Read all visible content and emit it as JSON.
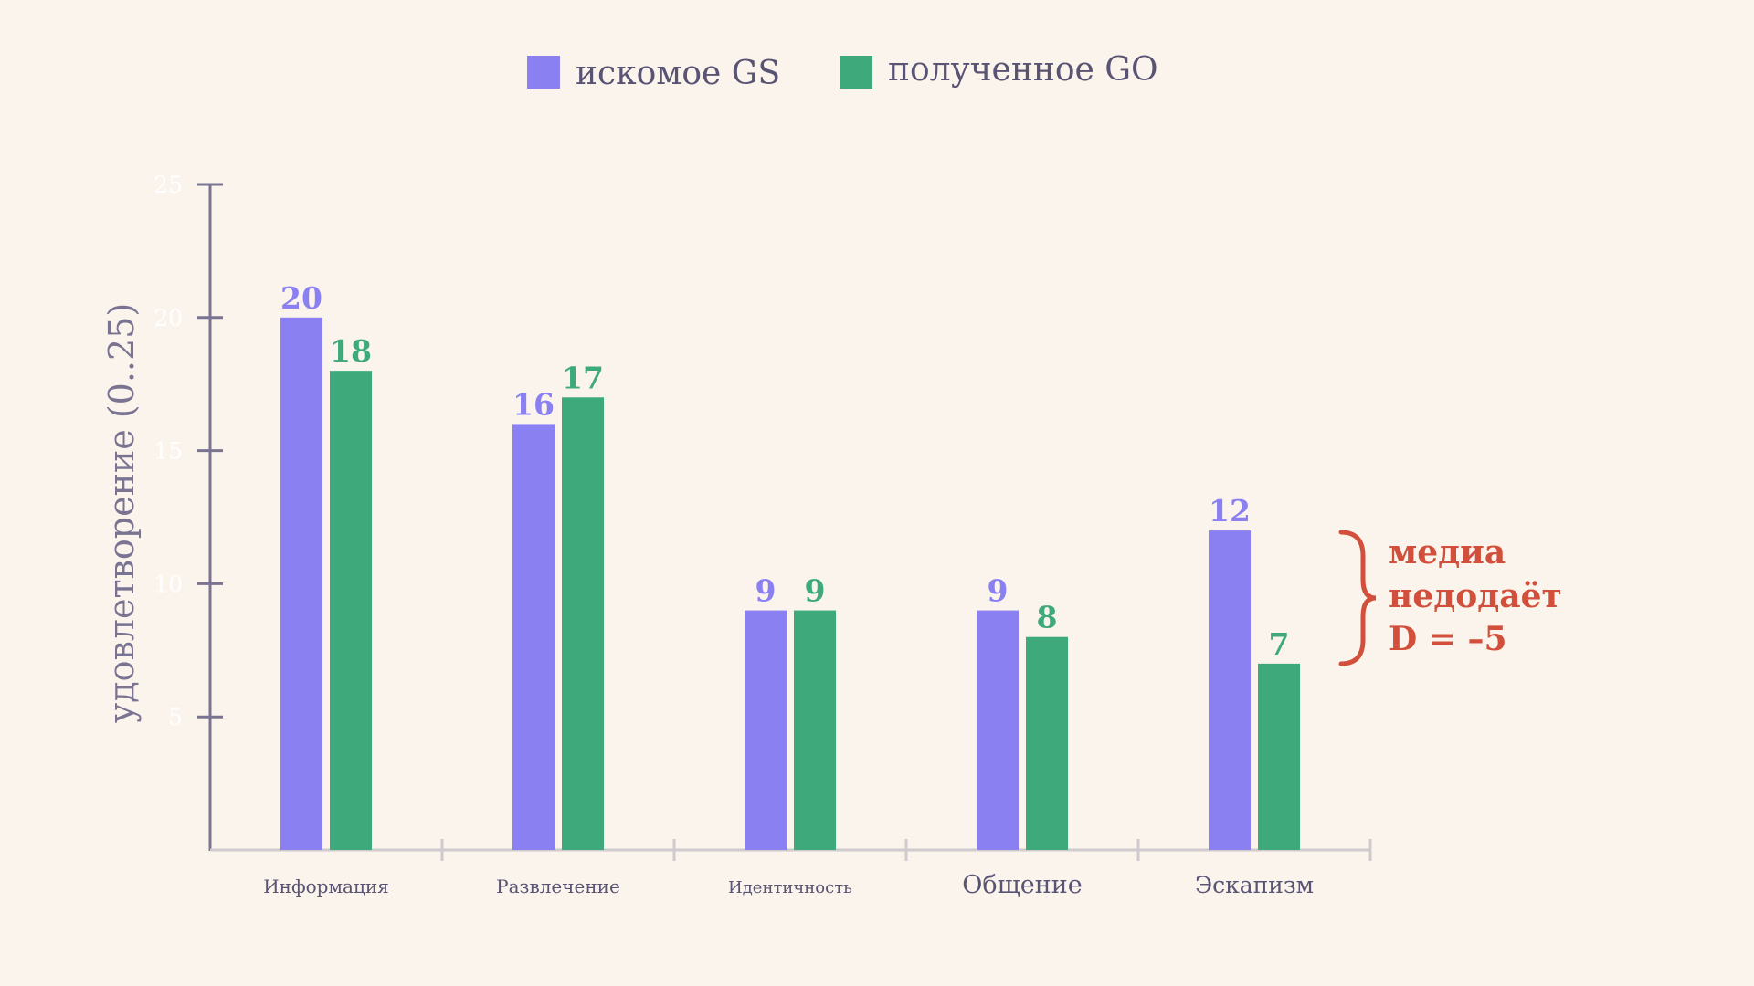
{
  "colors": {
    "background": "#fbf4ec",
    "series_gs": "#8b80f2",
    "series_go": "#3eaa7b",
    "axis": "#7a7492",
    "baseline": "#cfcacd",
    "annotation": "#d24f3c"
  },
  "legend": {
    "placement": "top-center",
    "items": [
      {
        "label": "искомое GS",
        "color": "#8b80f2"
      },
      {
        "label": "полученное GO",
        "color": "#3eaa7b"
      }
    ]
  },
  "annotation": {
    "lines": [
      "медиа",
      "недодаёт",
      "D = –5"
    ],
    "target_category": "Эскапизм",
    "icon": "right-curly-brace"
  },
  "chart_data": {
    "type": "bar",
    "title": "",
    "xlabel": "",
    "ylabel": "удовлетворение (0..25)",
    "ylim": [
      0,
      25
    ],
    "yticks": [
      5,
      10,
      15,
      20,
      25
    ],
    "grid": false,
    "categories": [
      "Информация",
      "Развлечение",
      "Идентичность",
      "Общение",
      "Эскапизм"
    ],
    "series": [
      {
        "name": "искомое GS",
        "color": "#8b80f2",
        "values": [
          20,
          16,
          9,
          9,
          12
        ]
      },
      {
        "name": "полученное GO",
        "color": "#3eaa7b",
        "values": [
          18,
          17,
          9,
          8,
          7
        ]
      }
    ]
  }
}
